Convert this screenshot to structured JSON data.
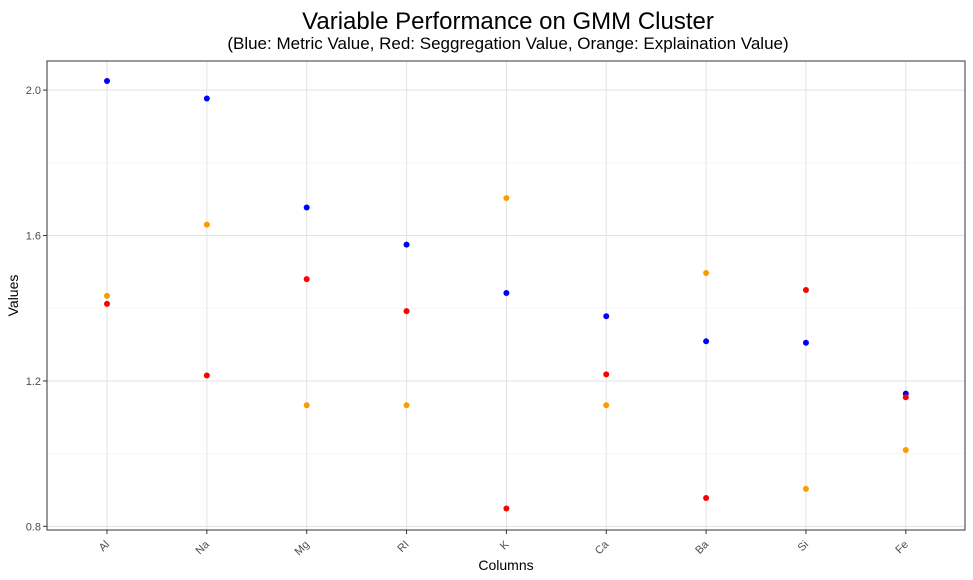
{
  "chart_data": {
    "type": "scatter",
    "title": "Variable Performance on GMM Cluster",
    "subtitle": "(Blue: Metric Value, Red: Seggregation Value, Orange: Explaination Value)",
    "xlabel": "Columns",
    "ylabel": "Values",
    "categories": [
      "Al",
      "Na",
      "Mg",
      "RI",
      "K",
      "Ca",
      "Ba",
      "Si",
      "Fe"
    ],
    "ylim": [
      0.79,
      2.08
    ],
    "yticks": [
      0.8,
      1.2,
      1.6,
      2.0
    ],
    "ytick_labels": [
      "0.8",
      "1.2",
      "1.6",
      "2.0"
    ],
    "grid": true,
    "series": [
      {
        "color": "#0000ff",
        "values": [
          2.025,
          1.977,
          1.677,
          1.575,
          1.442,
          1.378,
          1.309,
          1.305,
          1.165
        ]
      },
      {
        "color": "#ff0000",
        "values": [
          1.412,
          1.215,
          1.48,
          1.392,
          0.849,
          1.218,
          0.878,
          1.45,
          1.155
        ]
      },
      {
        "color": "#ff9900",
        "values": [
          1.434,
          1.63,
          1.133,
          1.133,
          1.703,
          1.133,
          1.497,
          0.903,
          1.01
        ]
      }
    ]
  }
}
